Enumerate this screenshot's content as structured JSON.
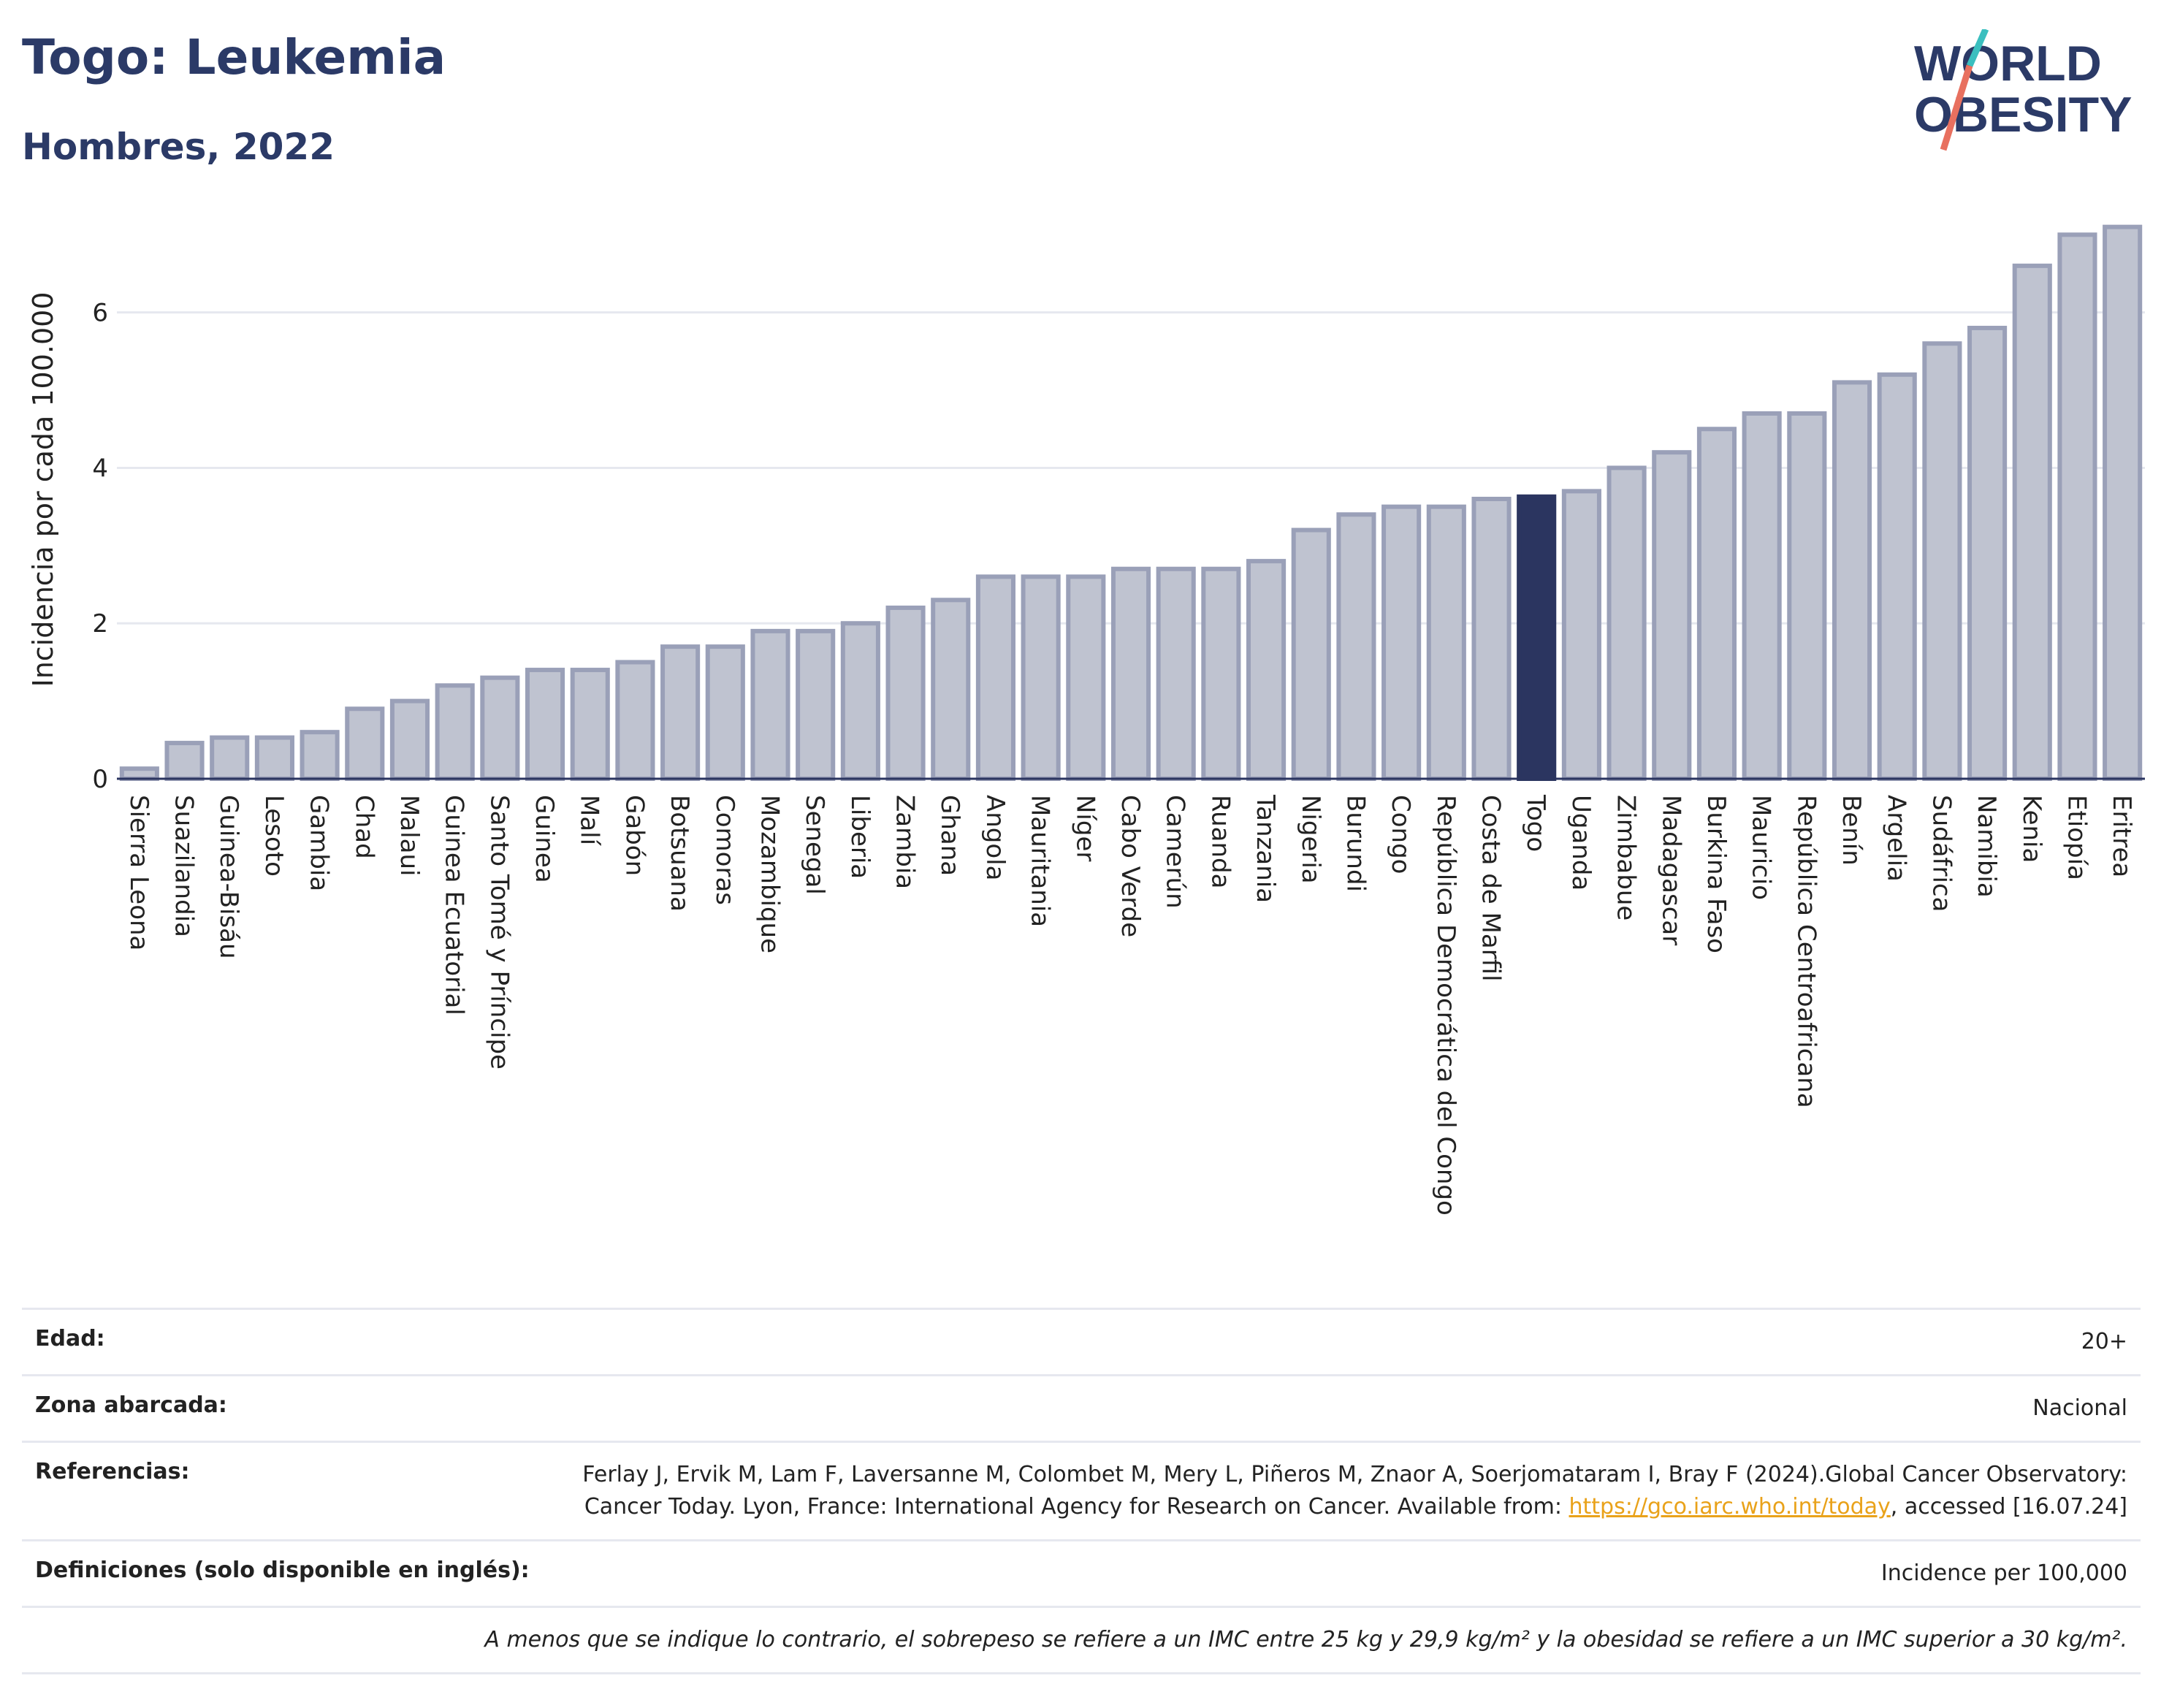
{
  "title": "Togo: Leukemia",
  "subtitle": "Hombres, 2022",
  "logo": {
    "line1": "WORLD",
    "line2": "OBESITY"
  },
  "colors": {
    "bar": "#bfc3d0",
    "bar_stroke": "#9aa0b8",
    "highlight": "#2b3560",
    "title": "#2b3a67",
    "grid": "#e6e8ef",
    "link": "#e9a21a"
  },
  "chart_data": {
    "type": "bar",
    "ylabel": "Incidencia por cada 100.000",
    "xlabel": "",
    "ylim": [
      0,
      7.2
    ],
    "yticks": [
      0,
      2,
      4,
      6
    ],
    "highlight": "Togo",
    "categories": [
      "Sierra Leona",
      "Suazilandia",
      "Guinea-Bisáu",
      "Lesoto",
      "Gambia",
      "Chad",
      "Malaui",
      "Guinea Ecuatorial",
      "Santo Tomé y Príncipe",
      "Guinea",
      "Malí",
      "Gabón",
      "Botsuana",
      "Comoras",
      "Mozambique",
      "Senegal",
      "Liberia",
      "Zambia",
      "Ghana",
      "Angola",
      "Mauritania",
      "Níger",
      "Cabo Verde",
      "Camerún",
      "Ruanda",
      "Tanzania",
      "Nigeria",
      "Burundi",
      "Congo",
      "República Democrática del Congo",
      "Costa de Marfil",
      "Togo",
      "Uganda",
      "Zimbabue",
      "Madagascar",
      "Burkina Faso",
      "Mauricio",
      "República Centroafricana",
      "Benín",
      "Argelia",
      "Sudáfrica",
      "Namibia",
      "Kenia",
      "Etiopía",
      "Eritrea"
    ],
    "values": [
      0.13,
      0.46,
      0.53,
      0.53,
      0.6,
      0.9,
      1.0,
      1.2,
      1.3,
      1.4,
      1.4,
      1.5,
      1.7,
      1.7,
      1.9,
      1.9,
      2.0,
      2.2,
      2.3,
      2.6,
      2.6,
      2.6,
      2.7,
      2.7,
      2.7,
      2.8,
      3.2,
      3.4,
      3.5,
      3.5,
      3.6,
      3.63,
      3.7,
      4.0,
      4.2,
      4.5,
      4.7,
      4.7,
      5.1,
      5.2,
      5.6,
      5.8,
      6.6,
      7.0,
      7.1
    ]
  },
  "info": {
    "age_label": "Edad:",
    "age_value": "20+",
    "zone_label": "Zona abarcada:",
    "zone_value": "Nacional",
    "ref_label": "Referencias:",
    "ref_text": "Ferlay J, Ervik M, Lam F, Laversanne M, Colombet M, Mery L, Piñeros M, Znaor A, Soerjomataram I, Bray F (2024).Global Cancer Observatory: Cancer Today. Lyon, France: International Agency for Research on Cancer. Available from: ",
    "ref_link": "https://gco.iarc.who.int/today",
    "ref_tail": ", accessed [16.07.24]",
    "def_label": "Definiciones (solo disponible en inglés):",
    "def_value": "Incidence per 100,000",
    "note": "A menos que se indique lo contrario, el sobrepeso se refiere a un IMC entre 25 kg y 29,9 kg/m² y la obesidad se refiere a un IMC superior a 30 kg/m²."
  }
}
